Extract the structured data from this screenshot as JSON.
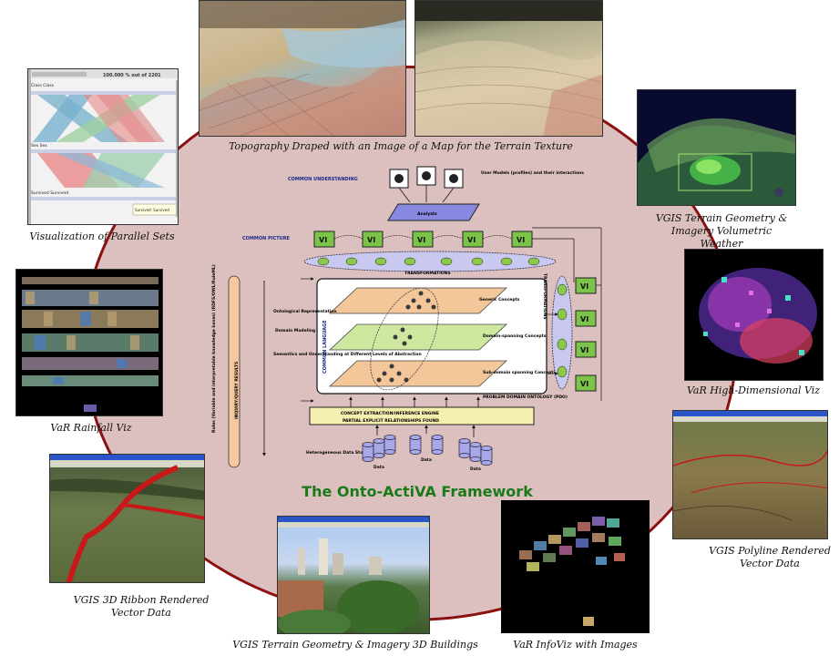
{
  "framework_title": "The Onto-ActiVA Framework",
  "captions": {
    "parallel_sets": "Visualization of Parallel Sets",
    "topography": "Topography Draped with an Image of a Map for the Terrain Texture",
    "volumetric": "VGIS Terrain Geometry & Imagery Volumetric Weather",
    "high_dim": "VaR High-Dimensional Viz",
    "rainfall": "VaR Rainfall Viz",
    "polyline": "VGIS Polyline Rendered Vector Data",
    "ribbon": "VGIS 3D Ribbon Rendered Vector Data",
    "buildings": "VGIS Terrain Geometry & Imagery 3D Buildings",
    "infoviz": "VaR InfoViz with Images"
  },
  "diagram": {
    "common_understanding": "COMMON UNDERSTANDING",
    "common_picture": "COMMON PICTURE",
    "user_models": "User Models (profiles) and their interactions",
    "analysts": "Analysts",
    "vi_label": "VI",
    "transformations": "TRANSFORMATIONS",
    "common_language": "COMMON LANGUAGE",
    "generic_concepts": "Generic Concepts",
    "domain_spanning": "Domain-spanning Concepts",
    "sub_domain": "Sub-domain spanning Concepts",
    "ontological_repr": "Ontological Representation",
    "domain_modeling": "Domain Modeling",
    "semantics": "Semantics and Understanding at Different Levels of Abstraction",
    "inquiry": "INQUIRY/QUERY RESULTS",
    "rules_side": "Rules (Variable and interpretable knowledge bases) (RDFS/OWL/RuleML)",
    "concept_extraction": "CONCEPT EXTRACTION/INFERENCE ENGINE",
    "partial_explicit": "PARTIAL EXPLICIT RELATIONSHIPS FOUND",
    "problem_domain": "PROBLEM DOMAIN ONTOLOGY (PDO)",
    "heterogeneous": "Heterogeneous Data Stores",
    "data": "Data"
  },
  "parallel_sets": {
    "header": "100.000 % out of 2201",
    "dim1": "Class  Class",
    "dim2": "Sex  Sex",
    "dim3": "Survived  Survived",
    "tooltip": "Survived: Survived"
  },
  "colors": {
    "ellipse_fill": "#dcc0c0",
    "ellipse_border": "#8b1010",
    "title_green": "#1a7a1a",
    "vi_green": "#7cc34a",
    "layer_orange": "#f4c79a",
    "layer_green": "#cfe8a0",
    "peach": "#f5c8a0",
    "lavender": "#c8c8f0",
    "extraction_yellow": "#f5f0b0"
  }
}
